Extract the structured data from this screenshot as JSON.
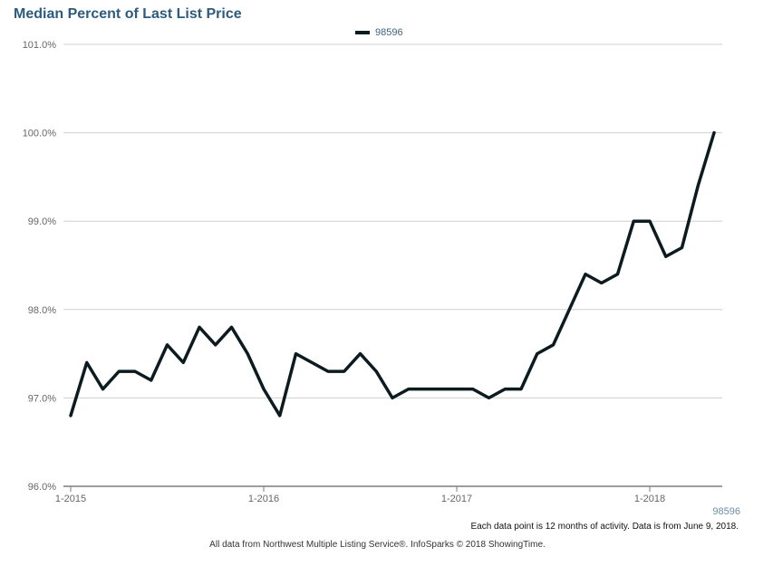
{
  "chart_data": {
    "type": "line",
    "title": "Median Percent of Last List Price",
    "ylim": [
      96.0,
      101.0
    ],
    "y_ticks": [
      96.0,
      97.0,
      98.0,
      99.0,
      100.0,
      101.0
    ],
    "y_tick_labels": [
      "96.0%",
      "97.0%",
      "98.0%",
      "99.0%",
      "100.0%",
      "101.0%"
    ],
    "x_tick_labels": [
      "1-2015",
      "1-2016",
      "1-2017",
      "1-2018"
    ],
    "x_tick_positions": [
      0,
      12,
      24,
      36
    ],
    "x_max": 42,
    "legend_position": "top-center",
    "grid": true,
    "series": [
      {
        "name": "98596",
        "color": "#0b1b1f",
        "values": [
          96.8,
          97.4,
          97.1,
          97.3,
          97.3,
          97.2,
          97.6,
          97.4,
          97.8,
          97.6,
          97.8,
          97.5,
          97.1,
          96.8,
          97.5,
          97.4,
          97.3,
          97.3,
          97.5,
          97.3,
          97.0,
          97.1,
          97.1,
          97.1,
          97.1,
          97.1,
          97.0,
          97.1,
          97.1,
          97.5,
          97.6,
          98.0,
          98.4,
          98.3,
          98.4,
          99.0,
          99.0,
          98.6,
          98.7,
          99.4,
          100.0
        ]
      }
    ],
    "series_axis_label": "98596"
  },
  "footer": {
    "note": "Each data point is 12 months of activity. Data is from June 9, 2018.",
    "credit": "All data from Northwest Multiple Listing Service®. InfoSparks © 2018 ShowingTime."
  }
}
